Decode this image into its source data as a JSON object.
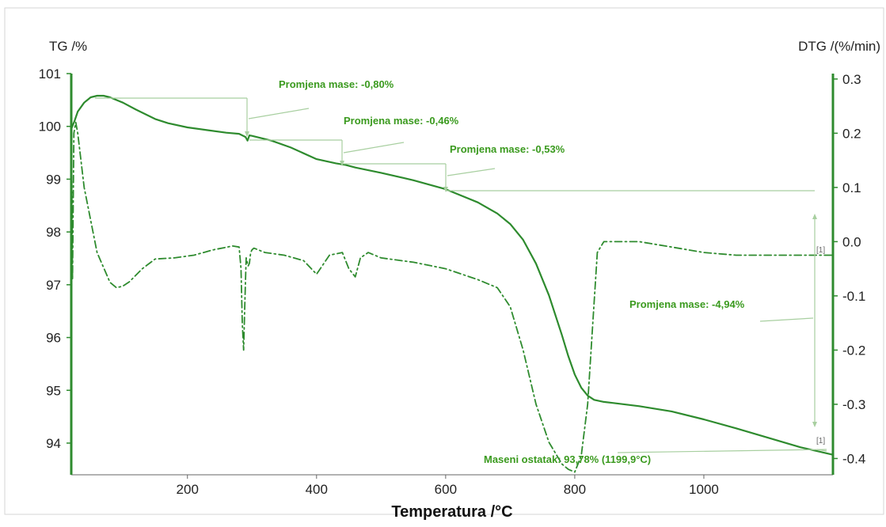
{
  "chart_data": {
    "type": "line",
    "xlabel": "Temperatura /°C",
    "ylabel_left": "TG /%",
    "ylabel_right": "DTG /(%/min)",
    "xlim": [
      20,
      1200
    ],
    "ylim_left": [
      93.4,
      101
    ],
    "ylim_right": [
      -0.43,
      0.31
    ],
    "x_ticks": [
      200,
      400,
      600,
      800,
      1000
    ],
    "y_ticks_left": [
      94,
      95,
      96,
      97,
      98,
      99,
      100,
      101
    ],
    "y_ticks_right": [
      -0.4,
      -0.3,
      -0.2,
      -0.1,
      0.0,
      0.1,
      0.2,
      0.3
    ],
    "x_tick_labels": [
      "200",
      "400",
      "600",
      "800",
      "1000"
    ],
    "y_tick_labels_left": [
      "94",
      "95",
      "96",
      "97",
      "98",
      "99",
      "100",
      "101"
    ],
    "y_tick_labels_right": [
      "-0.4",
      "-0.3",
      "-0.2",
      "-0.1",
      "0.0",
      "0.1",
      "0.2",
      "0.3"
    ],
    "grid": false,
    "colors": {
      "curve": "#2e8b2e",
      "annotation_text": "#3a9a1e",
      "axis": "#2e8b2e",
      "guide": "#a8cfa0"
    },
    "series": [
      {
        "axis": "left",
        "style": "solid",
        "x": [
          20,
          25,
          30,
          40,
          50,
          60,
          70,
          80,
          100,
          120,
          150,
          170,
          200,
          230,
          260,
          280,
          290,
          293,
          296,
          300,
          330,
          360,
          400,
          430,
          445,
          460,
          500,
          550,
          600,
          650,
          680,
          700,
          720,
          740,
          760,
          780,
          790,
          800,
          810,
          820,
          830,
          845,
          860,
          900,
          950,
          1000,
          1050,
          1100,
          1150,
          1199.9
        ],
        "y": [
          99.95,
          100.1,
          100.28,
          100.45,
          100.55,
          100.58,
          100.58,
          100.55,
          100.45,
          100.32,
          100.14,
          100.06,
          99.98,
          99.93,
          99.88,
          99.86,
          99.8,
          99.73,
          99.83,
          99.82,
          99.73,
          99.6,
          99.38,
          99.3,
          99.27,
          99.22,
          99.12,
          98.98,
          98.81,
          98.56,
          98.35,
          98.15,
          97.85,
          97.4,
          96.8,
          96.05,
          95.65,
          95.3,
          95.05,
          94.9,
          94.82,
          94.78,
          94.76,
          94.7,
          94.6,
          94.45,
          94.28,
          94.1,
          93.92,
          93.78
        ]
      },
      {
        "axis": "right",
        "style": "dash-dot",
        "x": [
          20,
          22,
          24,
          27,
          30,
          40,
          60,
          80,
          90,
          100,
          110,
          130,
          150,
          180,
          210,
          240,
          270,
          280,
          283,
          285,
          287,
          289,
          291,
          294,
          296,
          298,
          300,
          303,
          320,
          350,
          380,
          400,
          420,
          440,
          450,
          460,
          468,
          480,
          500,
          550,
          600,
          650,
          680,
          700,
          720,
          740,
          760,
          780,
          790,
          800,
          810,
          820,
          828,
          835,
          845,
          860,
          900,
          950,
          1000,
          1050,
          1100,
          1150,
          1199.9
        ],
        "y": [
          0.25,
          -0.07,
          0.2,
          0.22,
          0.2,
          0.1,
          -0.02,
          -0.075,
          -0.085,
          -0.082,
          -0.074,
          -0.05,
          -0.032,
          -0.03,
          -0.025,
          -0.015,
          -0.008,
          -0.01,
          -0.05,
          -0.15,
          -0.2,
          -0.11,
          -0.03,
          -0.045,
          -0.04,
          -0.02,
          -0.015,
          -0.012,
          -0.02,
          -0.025,
          -0.035,
          -0.06,
          -0.025,
          -0.02,
          -0.05,
          -0.065,
          -0.03,
          -0.02,
          -0.03,
          -0.038,
          -0.05,
          -0.07,
          -0.085,
          -0.12,
          -0.2,
          -0.3,
          -0.37,
          -0.41,
          -0.42,
          -0.425,
          -0.395,
          -0.3,
          -0.15,
          -0.02,
          0.0,
          0.0,
          0.0,
          -0.01,
          -0.02,
          -0.025,
          -0.025,
          -0.025,
          -0.025
        ]
      }
    ],
    "annotations": [
      "Promjena mase: -0,80%",
      "Promjena mase: -0,46%",
      "Promjena mase: -0,53%",
      "Promjena mase: -4,94%",
      "Maseni ostatak: 93,78% (1199,9°C)"
    ],
    "markers": [
      "[1]",
      "[1]"
    ]
  }
}
